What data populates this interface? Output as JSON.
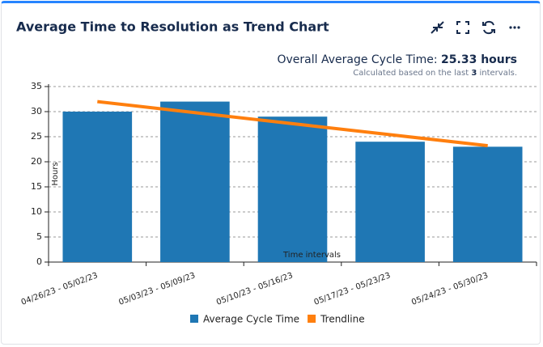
{
  "header": {
    "title": "Average Time to Resolution as Trend Chart"
  },
  "summary": {
    "label": "Overall Average Cycle Time:",
    "value": "25.33 hours",
    "note_before": "Calculated based on the last",
    "note_count": "3",
    "note_after": "intervals."
  },
  "chart_data": {
    "type": "bar",
    "x_label": "Time intervals",
    "y_label": "Hours",
    "categories": [
      "04/26/23 - 05/02/23",
      "05/03/23 - 05/09/23",
      "05/10/23 - 05/16/23",
      "05/17/23 - 05/23/23",
      "05/24/23 - 05/30/23"
    ],
    "series": [
      {
        "name": "Average Cycle Time",
        "color": "#1f77b4",
        "type": "bar",
        "values": [
          30,
          32,
          29,
          24,
          23
        ]
      },
      {
        "name": "Trendline",
        "color": "#ff7f0e",
        "type": "line",
        "values": [
          32,
          29.8,
          27.6,
          25.4,
          23.2
        ]
      }
    ],
    "ylim": [
      0,
      35
    ],
    "yticks": [
      0,
      5,
      10,
      15,
      20,
      25,
      30,
      35
    ],
    "grid": true
  }
}
